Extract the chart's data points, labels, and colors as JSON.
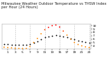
{
  "title": "Milwaukee Weather Outdoor Temperature vs THSW Index per Hour (24 Hours)",
  "hours": [
    0,
    1,
    2,
    3,
    4,
    5,
    6,
    7,
    8,
    9,
    10,
    11,
    12,
    13,
    14,
    15,
    16,
    17,
    18,
    19,
    20,
    21,
    22,
    23
  ],
  "temp": [
    46,
    45,
    44,
    44,
    43,
    43,
    43,
    45,
    49,
    54,
    60,
    65,
    68,
    70,
    71,
    70,
    68,
    65,
    62,
    59,
    56,
    54,
    52,
    50
  ],
  "thsw": [
    36,
    35,
    34,
    33,
    32,
    32,
    32,
    38,
    50,
    62,
    76,
    88,
    95,
    100,
    102,
    96,
    84,
    72,
    60,
    50,
    44,
    40,
    37,
    35
  ],
  "temp_color": "#000000",
  "thsw_orange": "#ff8800",
  "thsw_red": "#ff0000",
  "thsw_darkorange": "#ff4400",
  "bg_color": "#ffffff",
  "grid_color": "#bbbbbb",
  "ylim": [
    30,
    105
  ],
  "xlim": [
    -0.5,
    23.5
  ],
  "ytick_labels": [
    "4",
    "5",
    "6",
    "7",
    "8",
    "9",
    "10"
  ],
  "ytick_vals": [
    40,
    50,
    60,
    70,
    80,
    90,
    100
  ],
  "vgrid_positions": [
    3,
    7,
    11,
    15,
    19,
    23
  ],
  "xtick_locs": [
    1,
    3,
    5,
    7,
    9,
    11,
    13,
    15,
    17,
    19,
    21,
    23
  ],
  "marker_size": 1.8,
  "title_fontsize": 3.8,
  "tick_fontsize": 3.2
}
